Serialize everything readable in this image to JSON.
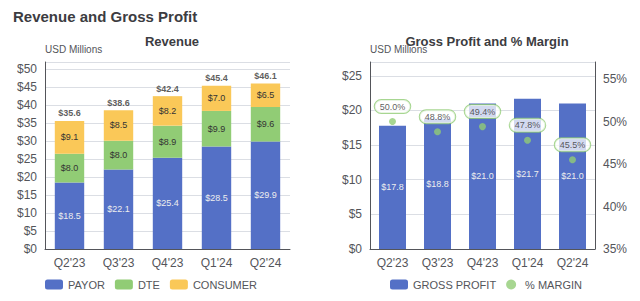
{
  "title": "Revenue and Gross Profit",
  "chart_data": [
    {
      "type": "bar",
      "title": "Revenue",
      "ylabel": "USD Millions",
      "categories": [
        "Q2'23",
        "Q3'23",
        "Q4'23",
        "Q1'24",
        "Q2'24"
      ],
      "stacked": true,
      "data_labels": true,
      "grid": true,
      "legend": "bottom",
      "series": [
        {
          "name": "PAYOR",
          "values": [
            18.5,
            22.1,
            25.4,
            28.5,
            29.9
          ],
          "value_labels": [
            "$18.5",
            "$22.1",
            "$25.4",
            "$28.5",
            "$29.9"
          ]
        },
        {
          "name": "DTE",
          "values": [
            8.0,
            8.0,
            8.9,
            9.9,
            9.6
          ],
          "value_labels": [
            "$8.0",
            "$8.0",
            "$8.9",
            "$9.9",
            "$9.6"
          ]
        },
        {
          "name": "CONSUMER",
          "values": [
            9.1,
            8.5,
            8.2,
            7.0,
            6.5
          ],
          "value_labels": [
            "$9.1",
            "$8.5",
            "$8.2",
            "$7.0",
            "$6.5"
          ]
        }
      ],
      "totals": [
        35.6,
        38.6,
        42.4,
        45.4,
        46.1
      ],
      "total_labels": [
        "$35.6",
        "$38.6",
        "$42.4",
        "$45.4",
        "$46.1"
      ],
      "ylim": [
        0,
        52
      ],
      "yticks": [
        {
          "value": 0,
          "label": "$0"
        },
        {
          "value": 5,
          "label": "$5"
        },
        {
          "value": 10,
          "label": "$10"
        },
        {
          "value": 15,
          "label": "$15"
        },
        {
          "value": 20,
          "label": "$20"
        },
        {
          "value": 25,
          "label": "$25"
        },
        {
          "value": 30,
          "label": "$30"
        },
        {
          "value": 35,
          "label": "$35"
        },
        {
          "value": 40,
          "label": "$40"
        },
        {
          "value": 45,
          "label": "$45"
        },
        {
          "value": 50,
          "label": "$50"
        }
      ]
    },
    {
      "type": "bar",
      "title": "Gross Profit and % Margin",
      "ylabel": "USD Millions",
      "categories": [
        "Q2'23",
        "Q3'23",
        "Q4'23",
        "Q1'24",
        "Q2'24"
      ],
      "data_labels": true,
      "grid": true,
      "legend": "bottom",
      "series": [
        {
          "name": "GROSS PROFIT",
          "type": "bar",
          "values": [
            17.8,
            18.8,
            21.0,
            21.7,
            21.0
          ],
          "value_labels": [
            "$17.8",
            "$18.8",
            "$21.0",
            "$21.7",
            "$21.0"
          ]
        },
        {
          "name": "% MARGIN",
          "type": "scatter",
          "axis": "y2",
          "values": [
            50.0,
            48.8,
            49.4,
            47.8,
            45.5
          ],
          "value_labels": [
            "50.0%",
            "48.8%",
            "49.4%",
            "47.8%",
            "45.5%"
          ]
        }
      ],
      "ylim": [
        0,
        27
      ],
      "yticks": [
        {
          "value": 0,
          "label": "$0"
        },
        {
          "value": 5,
          "label": "$5"
        },
        {
          "value": 10,
          "label": "$10"
        },
        {
          "value": 15,
          "label": "$15"
        },
        {
          "value": 20,
          "label": "$20"
        },
        {
          "value": 25,
          "label": "$25"
        }
      ],
      "y2lim": [
        35,
        57
      ],
      "y2ticks": [
        {
          "value": 35,
          "label": "35%"
        },
        {
          "value": 40,
          "label": "40%"
        },
        {
          "value": 45,
          "label": "45%"
        },
        {
          "value": 50,
          "label": "50%"
        },
        {
          "value": 55,
          "label": "55%"
        }
      ]
    }
  ]
}
